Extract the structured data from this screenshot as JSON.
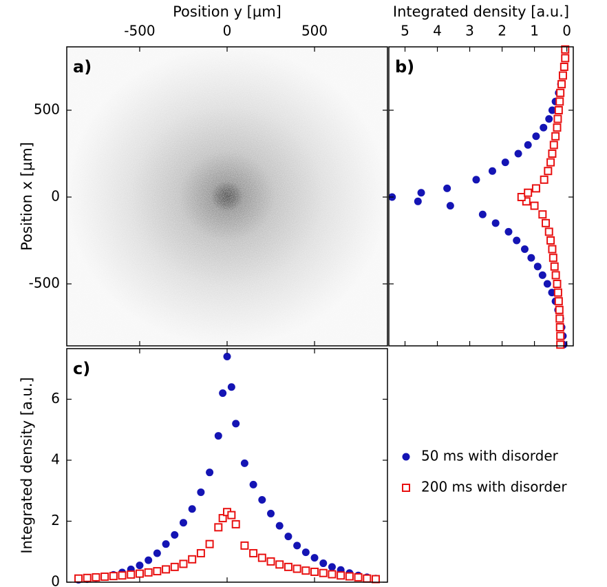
{
  "chart_data": [
    {
      "type": "image",
      "title": "a)",
      "xlabel": "Position y [µm]",
      "ylabel": "Position x [µm]",
      "xlim": [
        -917,
        917
      ],
      "xticks": [
        -500,
        0,
        500
      ],
      "ylim": [
        -857,
        865
      ],
      "yticks": [
        500,
        0,
        -500
      ]
    },
    {
      "type": "scatter",
      "orientation": "horizontal",
      "title": "b)",
      "xlabel": "Integrated density [a.u.]",
      "xlim": [
        5.5,
        -0.2
      ],
      "xticks": [
        5,
        4,
        3,
        2,
        1,
        0
      ],
      "ylim": [
        -857,
        865
      ],
      "yticks": [
        500,
        0,
        -500
      ],
      "positions": [
        -850,
        -800,
        -750,
        -700,
        -650,
        -600,
        -550,
        -500,
        -450,
        -400,
        -350,
        -300,
        -250,
        -200,
        -150,
        -100,
        -50,
        -25,
        0,
        25,
        50,
        100,
        150,
        200,
        250,
        300,
        350,
        400,
        450,
        500,
        550,
        600,
        650,
        700,
        750,
        800,
        850
      ],
      "series": [
        {
          "color": "#1414b4",
          "marker": "circle",
          "values": [
            0.1,
            0.12,
            0.16,
            0.2,
            0.27,
            0.35,
            0.46,
            0.6,
            0.75,
            0.9,
            1.1,
            1.3,
            1.55,
            1.8,
            2.2,
            2.6,
            3.6,
            4.6,
            5.4,
            4.5,
            3.7,
            2.8,
            2.3,
            1.9,
            1.5,
            1.2,
            0.95,
            0.72,
            0.55,
            0.45,
            0.35,
            0.25,
            0.18,
            0.12,
            0.08,
            0.05,
            0.04
          ]
        },
        {
          "color": "#e81010",
          "marker": "square",
          "values": [
            0.2,
            0.2,
            0.21,
            0.22,
            0.23,
            0.25,
            0.27,
            0.3,
            0.34,
            0.38,
            0.42,
            0.45,
            0.5,
            0.55,
            0.65,
            0.75,
            1.0,
            1.25,
            1.4,
            1.2,
            0.95,
            0.7,
            0.58,
            0.5,
            0.45,
            0.4,
            0.35,
            0.3,
            0.28,
            0.25,
            0.22,
            0.2,
            0.16,
            0.12,
            0.08,
            0.05,
            0.05
          ]
        }
      ]
    },
    {
      "type": "scatter",
      "title": "c)",
      "ylabel": "Integrated density [a.u.]",
      "xlim": [
        -917,
        917
      ],
      "xticks": [
        -500,
        0,
        500
      ],
      "ylim": [
        0,
        7.66
      ],
      "yticks": [
        0,
        2,
        4,
        6
      ],
      "x": [
        -850,
        -800,
        -750,
        -700,
        -650,
        -600,
        -550,
        -500,
        -450,
        -400,
        -350,
        -300,
        -250,
        -200,
        -150,
        -100,
        -50,
        -25,
        0,
        25,
        50,
        100,
        150,
        200,
        250,
        300,
        350,
        400,
        450,
        500,
        550,
        600,
        650,
        700,
        750,
        800,
        850
      ],
      "series": [
        {
          "name": "50 ms with disorder",
          "color": "#1414b4",
          "marker": "circle",
          "values": [
            0.08,
            0.1,
            0.14,
            0.18,
            0.24,
            0.32,
            0.42,
            0.55,
            0.72,
            0.95,
            1.25,
            1.55,
            1.95,
            2.4,
            2.95,
            3.6,
            4.8,
            6.2,
            7.4,
            6.4,
            5.2,
            3.9,
            3.2,
            2.7,
            2.25,
            1.85,
            1.5,
            1.2,
            0.98,
            0.8,
            0.62,
            0.5,
            0.4,
            0.3,
            0.22,
            0.16,
            0.12
          ]
        },
        {
          "name": "200 ms with disorder",
          "color": "#e81010",
          "marker": "square",
          "values": [
            0.12,
            0.14,
            0.16,
            0.18,
            0.2,
            0.22,
            0.25,
            0.28,
            0.32,
            0.36,
            0.42,
            0.5,
            0.6,
            0.75,
            0.95,
            1.25,
            1.8,
            2.1,
            2.3,
            2.2,
            1.9,
            1.2,
            0.95,
            0.8,
            0.68,
            0.58,
            0.5,
            0.44,
            0.38,
            0.34,
            0.3,
            0.26,
            0.22,
            0.19,
            0.16,
            0.12,
            0.1
          ]
        }
      ]
    }
  ]
}
